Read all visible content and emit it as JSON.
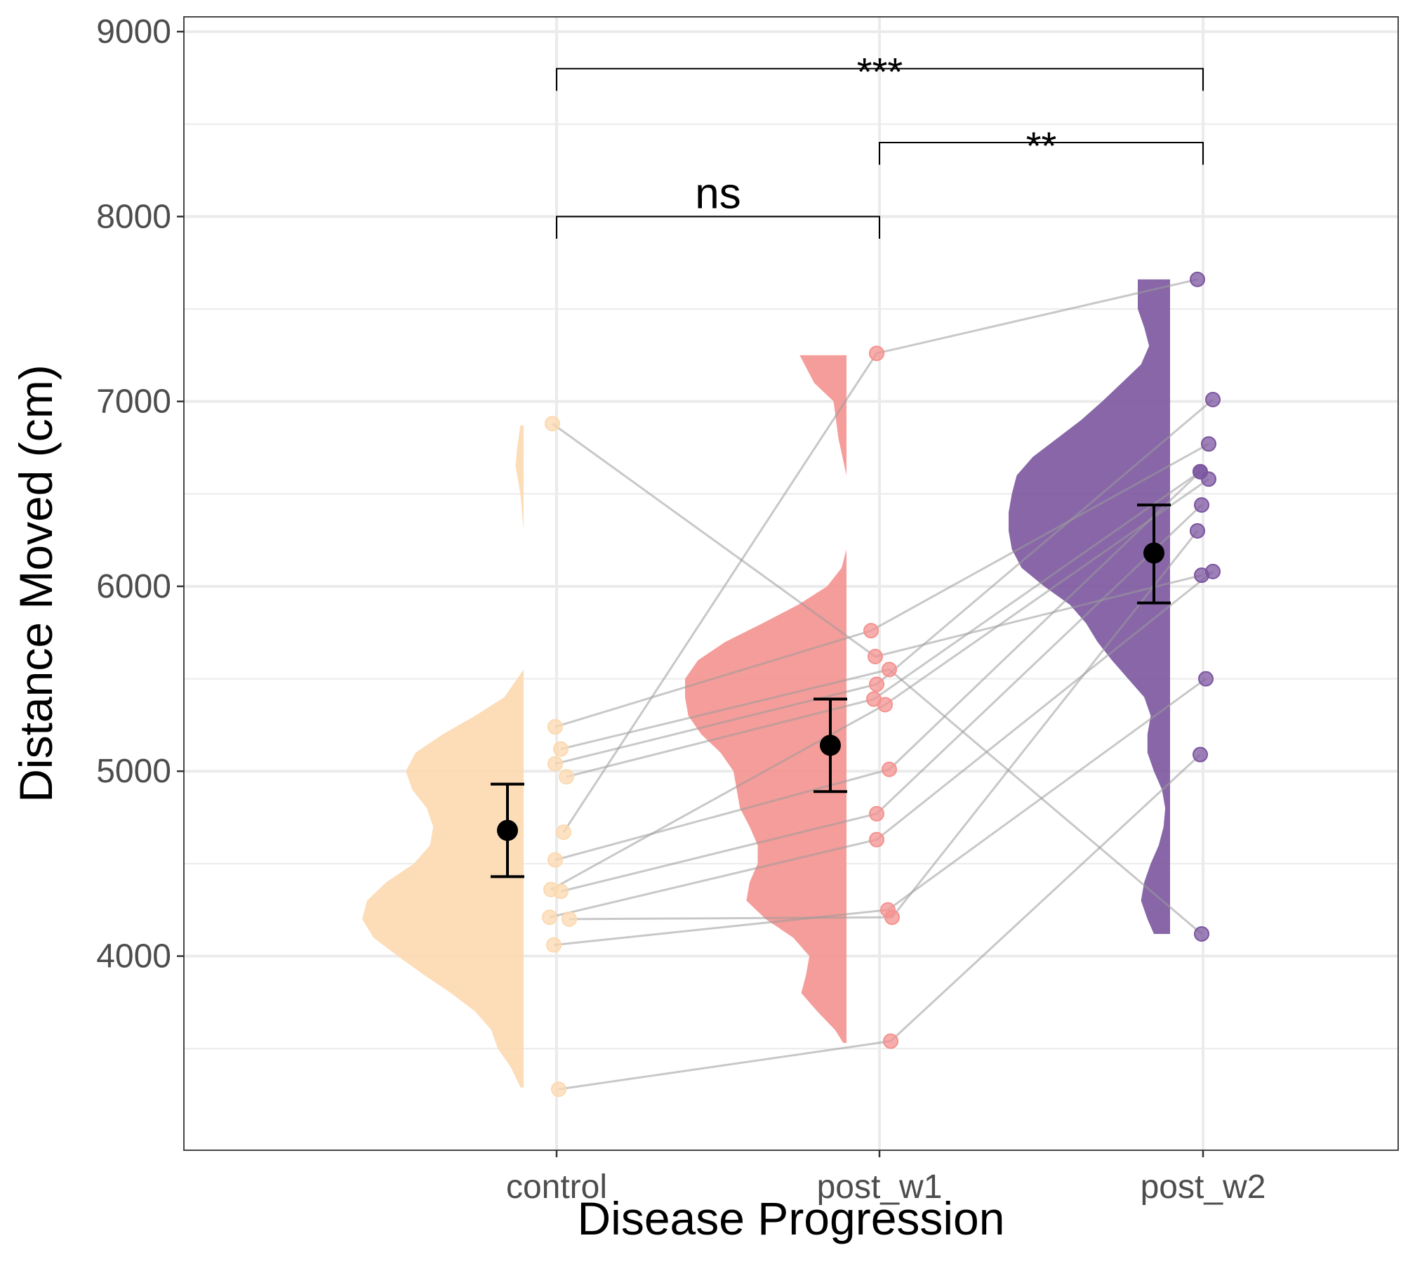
{
  "chart_data": {
    "type": "raincloud",
    "xlabel": "Disease Progression",
    "ylabel": "Distance Moved (cm)",
    "ylim": [
      2950,
      9080
    ],
    "yticks": [
      4000,
      5000,
      6000,
      7000,
      8000,
      9000
    ],
    "grid": true,
    "legend": "none",
    "categories": [
      {
        "name": "control",
        "color": "#fcd9b0",
        "mean": 4680,
        "ci_low": 4430,
        "ci_high": 4930,
        "density": [
          [
            3290,
            0.02
          ],
          [
            3400,
            0.08
          ],
          [
            3500,
            0.16
          ],
          [
            3600,
            0.2
          ],
          [
            3700,
            0.3
          ],
          [
            3800,
            0.45
          ],
          [
            3900,
            0.62
          ],
          [
            4000,
            0.78
          ],
          [
            4100,
            0.93
          ],
          [
            4200,
            1.0
          ],
          [
            4300,
            0.97
          ],
          [
            4400,
            0.85
          ],
          [
            4500,
            0.68
          ],
          [
            4600,
            0.58
          ],
          [
            4700,
            0.56
          ],
          [
            4800,
            0.6
          ],
          [
            4900,
            0.69
          ],
          [
            5000,
            0.73
          ],
          [
            5100,
            0.67
          ],
          [
            5200,
            0.5
          ],
          [
            5300,
            0.3
          ],
          [
            5400,
            0.12
          ],
          [
            5550,
            0.0
          ],
          [
            6000,
            0.0
          ],
          [
            6300,
            0.0
          ],
          [
            6500,
            0.02
          ],
          [
            6650,
            0.05
          ],
          [
            6750,
            0.04
          ],
          [
            6870,
            0.02
          ]
        ]
      },
      {
        "name": "post_w1",
        "color": "#f4928f",
        "mean": 5140,
        "ci_low": 4890,
        "ci_high": 5390,
        "density": [
          [
            3530,
            0.02
          ],
          [
            3600,
            0.07
          ],
          [
            3700,
            0.18
          ],
          [
            3800,
            0.28
          ],
          [
            3900,
            0.25
          ],
          [
            4000,
            0.23
          ],
          [
            4100,
            0.33
          ],
          [
            4200,
            0.5
          ],
          [
            4300,
            0.62
          ],
          [
            4400,
            0.6
          ],
          [
            4500,
            0.55
          ],
          [
            4600,
            0.55
          ],
          [
            4700,
            0.6
          ],
          [
            4800,
            0.66
          ],
          [
            4900,
            0.68
          ],
          [
            5000,
            0.7
          ],
          [
            5100,
            0.78
          ],
          [
            5200,
            0.9
          ],
          [
            5300,
            0.98
          ],
          [
            5400,
            1.0
          ],
          [
            5500,
            1.0
          ],
          [
            5600,
            0.92
          ],
          [
            5700,
            0.75
          ],
          [
            5800,
            0.52
          ],
          [
            5900,
            0.3
          ],
          [
            6000,
            0.12
          ],
          [
            6100,
            0.03
          ],
          [
            6200,
            0.0
          ],
          [
            6600,
            0.0
          ],
          [
            6800,
            0.05
          ],
          [
            7000,
            0.08
          ],
          [
            7100,
            0.2
          ],
          [
            7200,
            0.26
          ],
          [
            7250,
            0.29
          ]
        ]
      },
      {
        "name": "post_w2",
        "color": "#7b559f",
        "mean": 6180,
        "ci_low": 5910,
        "ci_high": 6440,
        "density": [
          [
            4120,
            0.1
          ],
          [
            4200,
            0.14
          ],
          [
            4300,
            0.18
          ],
          [
            4400,
            0.16
          ],
          [
            4500,
            0.12
          ],
          [
            4600,
            0.07
          ],
          [
            4700,
            0.04
          ],
          [
            4800,
            0.03
          ],
          [
            4900,
            0.05
          ],
          [
            5000,
            0.1
          ],
          [
            5100,
            0.14
          ],
          [
            5200,
            0.14
          ],
          [
            5300,
            0.12
          ],
          [
            5400,
            0.16
          ],
          [
            5500,
            0.26
          ],
          [
            5600,
            0.36
          ],
          [
            5700,
            0.45
          ],
          [
            5800,
            0.52
          ],
          [
            5900,
            0.62
          ],
          [
            6000,
            0.78
          ],
          [
            6100,
            0.92
          ],
          [
            6200,
            0.98
          ],
          [
            6300,
            1.0
          ],
          [
            6400,
            1.0
          ],
          [
            6500,
            0.98
          ],
          [
            6600,
            0.95
          ],
          [
            6700,
            0.85
          ],
          [
            6800,
            0.7
          ],
          [
            6900,
            0.55
          ],
          [
            7000,
            0.42
          ],
          [
            7100,
            0.3
          ],
          [
            7200,
            0.18
          ],
          [
            7300,
            0.13
          ],
          [
            7400,
            0.16
          ],
          [
            7500,
            0.2
          ],
          [
            7600,
            0.2
          ],
          [
            7660,
            0.2
          ]
        ]
      }
    ],
    "subjects": [
      [
        3280,
        3540,
        5090
      ],
      [
        4060,
        4250,
        5500
      ],
      [
        4200,
        4210,
        6300
      ],
      [
        4210,
        4630,
        6080
      ],
      [
        4350,
        4770,
        6440
      ],
      [
        4360,
        5360,
        6580
      ],
      [
        4520,
        5010,
        6620
      ],
      [
        4670,
        7260,
        7660
      ],
      [
        4970,
        5390,
        6620
      ],
      [
        5040,
        5470,
        7010
      ],
      [
        5120,
        5550,
        4120
      ],
      [
        5240,
        5760,
        6770
      ],
      [
        6880,
        5620,
        6060
      ]
    ],
    "significance": [
      {
        "from": "control",
        "to": "post_w1",
        "y": 8000,
        "label": "ns"
      },
      {
        "from": "post_w1",
        "to": "post_w2",
        "y": 8400,
        "label": "**"
      },
      {
        "from": "control",
        "to": "post_w2",
        "y": 8800,
        "label": "***"
      }
    ]
  }
}
